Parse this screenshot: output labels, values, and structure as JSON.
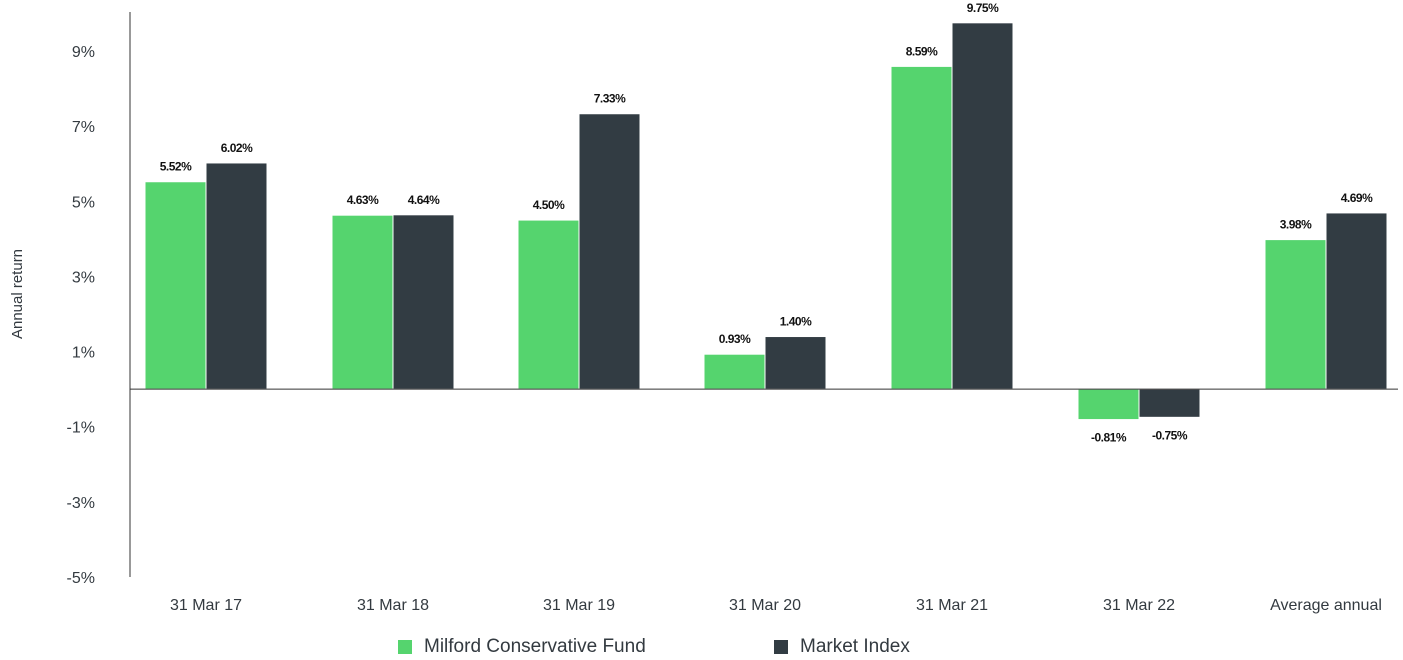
{
  "chart_data": {
    "type": "bar",
    "ylabel": "Annual return",
    "ylim": [
      -5,
      10
    ],
    "yticks": [
      "9%",
      "7%",
      "5%",
      "3%",
      "1%",
      "-1%",
      "-3%",
      "-5%"
    ],
    "ytick_values": [
      9,
      7,
      5,
      3,
      1,
      -1,
      -3,
      -5
    ],
    "categories": [
      "31 Mar 17",
      "31 Mar 18",
      "31 Mar 19",
      "31 Mar 20",
      "31 Mar 21",
      "31 Mar 22",
      "Average annual"
    ],
    "series": [
      {
        "name": "Milford Conservative Fund",
        "color": "#55d46e",
        "values": [
          5.52,
          4.63,
          4.5,
          0.93,
          8.59,
          -0.81,
          3.98
        ],
        "labels": [
          "5.52%",
          "4.63%",
          "4.50%",
          "0.93%",
          "8.59%",
          "-0.81%",
          "3.98%"
        ]
      },
      {
        "name": "Market Index",
        "color": "#323c43",
        "values": [
          6.02,
          4.64,
          7.33,
          1.4,
          9.75,
          -0.75,
          4.69
        ],
        "labels": [
          "6.02%",
          "4.64%",
          "7.33%",
          "1.40%",
          "9.75%",
          "-0.75%",
          "4.69%"
        ]
      }
    ],
    "grid": false,
    "legend_position": "bottom"
  }
}
